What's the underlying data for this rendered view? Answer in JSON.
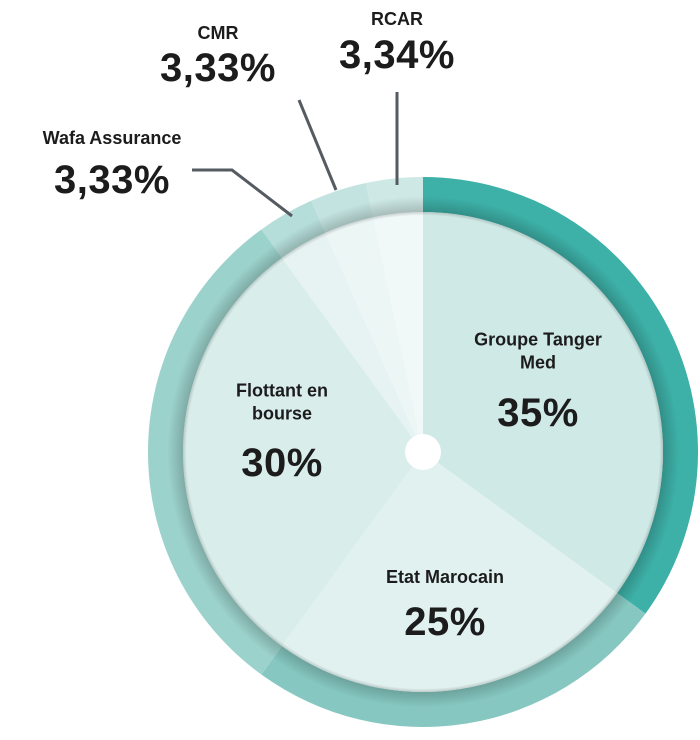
{
  "chart_data": {
    "type": "pie",
    "categories": [
      "Groupe Tanger Med",
      "Etat Marocain",
      "Flottant en bourse",
      "Wafa Assurance",
      "CMR",
      "RCAR"
    ],
    "values": [
      35,
      25,
      30,
      3.33,
      3.33,
      3.34
    ],
    "value_labels": [
      "35%",
      "25%",
      "30%",
      "3,33%",
      "3,33%",
      "3,34%"
    ],
    "colors": [
      "#cfe9e6",
      "#e0f1ef",
      "#d9eeeb",
      "#e6f3f2",
      "#ecf6f5",
      "#f1f8f8"
    ],
    "ring_colors": [
      "#3db0a7",
      "#86c8c1",
      "#9cd2cc",
      "#b5ddd9",
      "#c3e3e0",
      "#cde8e5"
    ]
  }
}
